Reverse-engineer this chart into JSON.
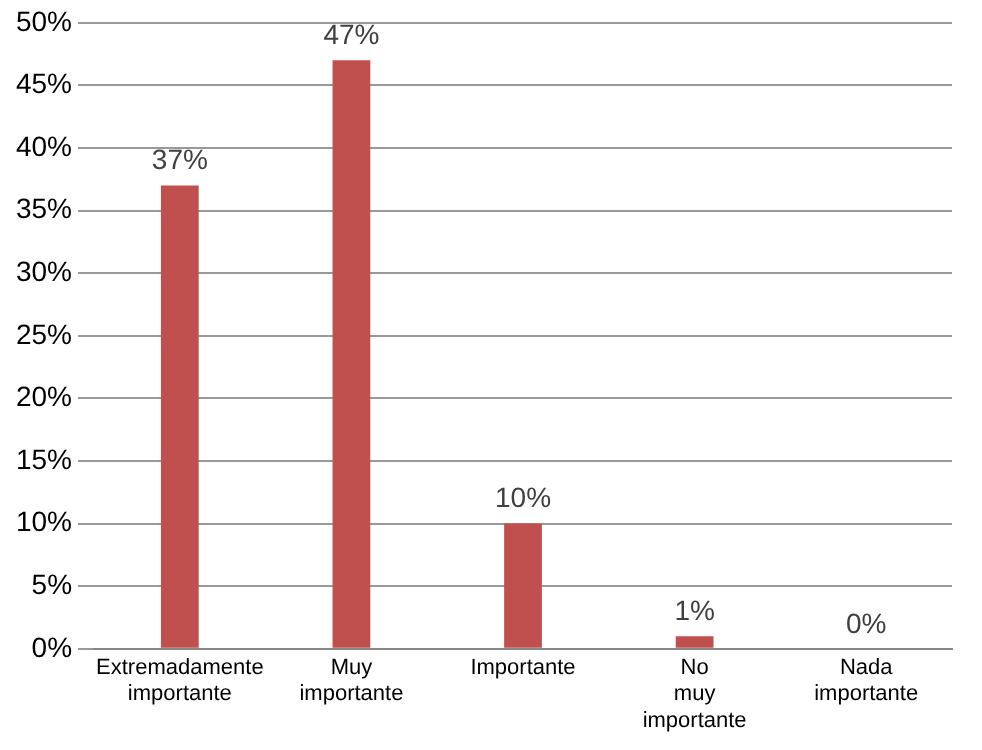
{
  "chart_data": {
    "type": "bar",
    "categories": [
      "Extremadamente importante",
      "Muy importante",
      "Importante",
      "No muy importante",
      "Nada importante"
    ],
    "values": [
      37,
      47,
      10,
      1,
      0
    ],
    "value_labels": [
      "37%",
      "47%",
      "10%",
      "1%",
      "0%"
    ],
    "color": "#c0504d",
    "ylim": [
      0,
      50
    ],
    "yticks": [
      {
        "value": 0,
        "label": "0%"
      },
      {
        "value": 5,
        "label": "5%"
      },
      {
        "value": 10,
        "label": "10%"
      },
      {
        "value": 15,
        "label": "15%"
      },
      {
        "value": 20,
        "label": "20%"
      },
      {
        "value": 25,
        "label": "25%"
      },
      {
        "value": 30,
        "label": "30%"
      },
      {
        "value": 35,
        "label": "35%"
      },
      {
        "value": 40,
        "label": "40%"
      },
      {
        "value": 45,
        "label": "45%"
      },
      {
        "value": 50,
        "label": "50%"
      }
    ],
    "grid": "y",
    "legend": false
  }
}
